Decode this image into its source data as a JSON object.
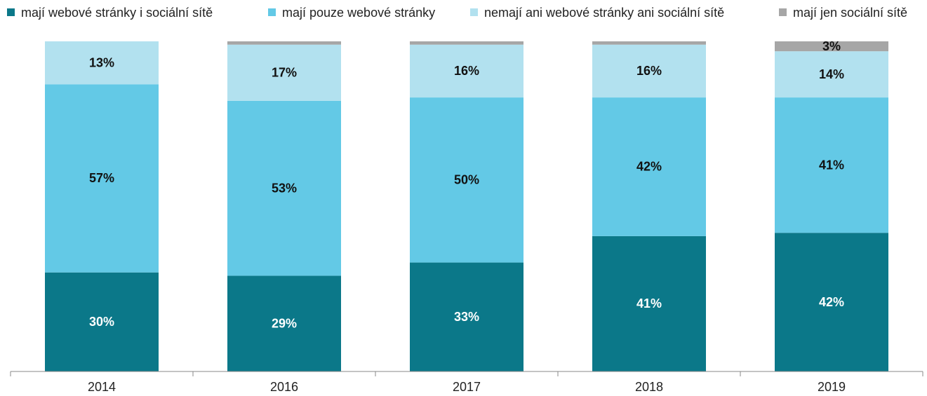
{
  "chart_data": {
    "type": "stacked_bar",
    "categories": [
      "2014",
      "2016",
      "2017",
      "2018",
      "2019"
    ],
    "ylim": [
      0,
      100
    ],
    "series": [
      {
        "name": "mají webové stránky i sociální sítě",
        "color": "#0b7889",
        "values": [
          30,
          29,
          33,
          41,
          42
        ],
        "value_labels": [
          "30%",
          "29%",
          "33%",
          "41%",
          "42%"
        ]
      },
      {
        "name": "mají pouze webové stránky",
        "color": "#63c9e6",
        "values": [
          57,
          53,
          50,
          42,
          41
        ],
        "value_labels": [
          "57%",
          "53%",
          "50%",
          "42%",
          "41%"
        ]
      },
      {
        "name": "nemají ani webové stránky ani sociální sítě",
        "color": "#b2e1ef",
        "values": [
          13,
          17,
          16,
          16,
          14
        ],
        "value_labels": [
          "13%",
          "17%",
          "16%",
          "16%",
          "14%"
        ]
      },
      {
        "name": "mají jen sociální sítě",
        "color": "#a6a6a6",
        "values": [
          0,
          1,
          1,
          1,
          3
        ],
        "value_labels": [
          null,
          null,
          null,
          null,
          "3%"
        ]
      }
    ]
  }
}
